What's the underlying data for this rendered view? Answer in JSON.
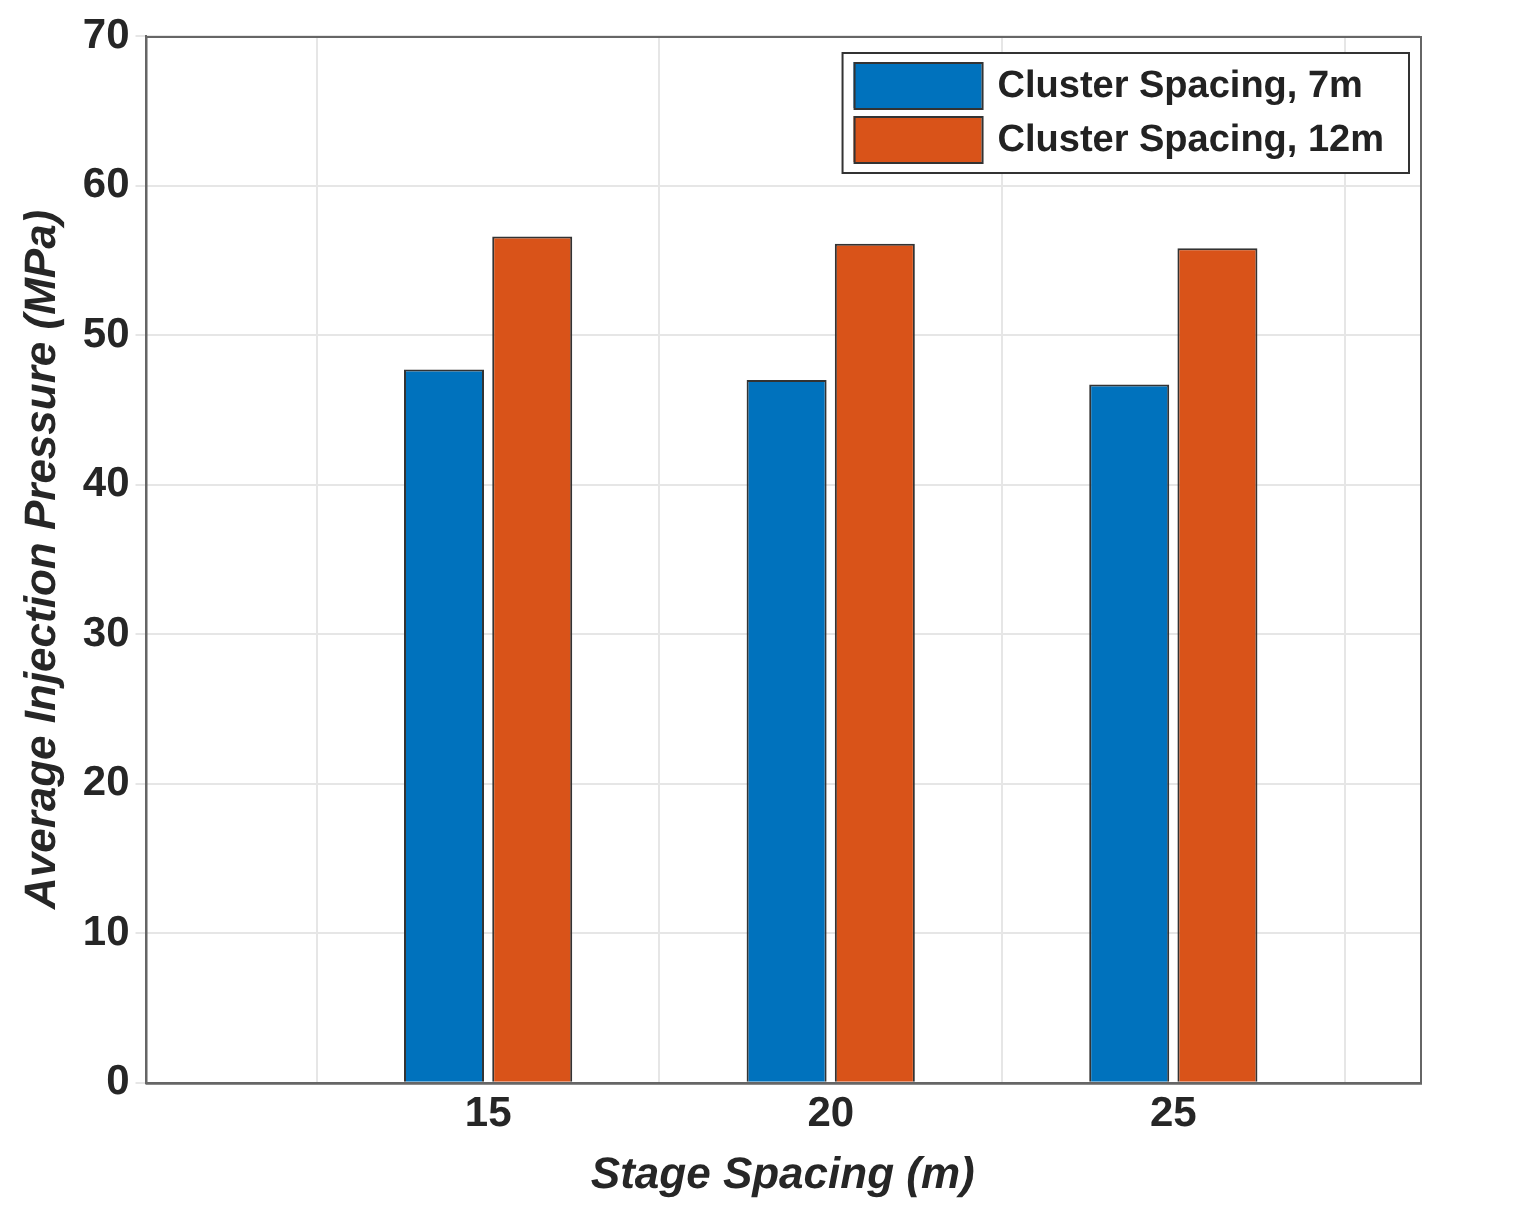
{
  "chart_data": {
    "type": "bar",
    "xlabel": "Stage Spacing (m)",
    "ylabel": "Average Injection Pressure (MPa)",
    "x": [
      15,
      20,
      25
    ],
    "series": [
      {
        "name": "Cluster Spacing, 7m",
        "color": "#0072bd",
        "values": [
          47.7,
          47.0,
          46.7
        ]
      },
      {
        "name": "Cluster Spacing, 12m",
        "color": "#d95319",
        "values": [
          56.6,
          56.1,
          55.8
        ]
      }
    ],
    "xlim": [
      10,
      28.6
    ],
    "xticks": [
      15,
      20,
      25
    ],
    "ylim": [
      0,
      70
    ],
    "yticks": [
      0,
      10,
      20,
      30,
      40,
      50,
      60,
      70
    ],
    "grid": true,
    "legend": "top right"
  }
}
